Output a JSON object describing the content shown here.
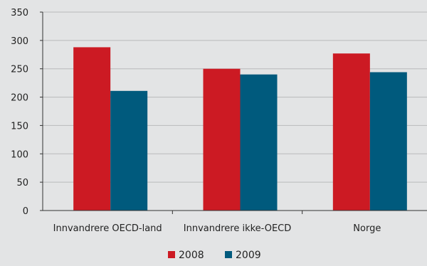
{
  "chart_data": {
    "type": "bar",
    "title": "",
    "xlabel": "",
    "ylabel": "",
    "categories": [
      "Innvandrere OECD-land",
      "Innvandrere ikke-OECD",
      "Norge"
    ],
    "series": [
      {
        "name": "2008",
        "values": [
          288,
          250,
          277
        ],
        "color": "#cc1a23"
      },
      {
        "name": "2009",
        "values": [
          211,
          240,
          244
        ],
        "color": "#005a7d"
      }
    ],
    "ylim": [
      0,
      350
    ],
    "yticks": [
      0,
      50,
      100,
      150,
      200,
      250,
      300,
      350
    ],
    "grid": true,
    "legend_position": "bottom-center"
  },
  "colors": {
    "background": "#e3e4e5",
    "gridline": "#b9babb",
    "axis": "#333333",
    "text": "#222222"
  }
}
